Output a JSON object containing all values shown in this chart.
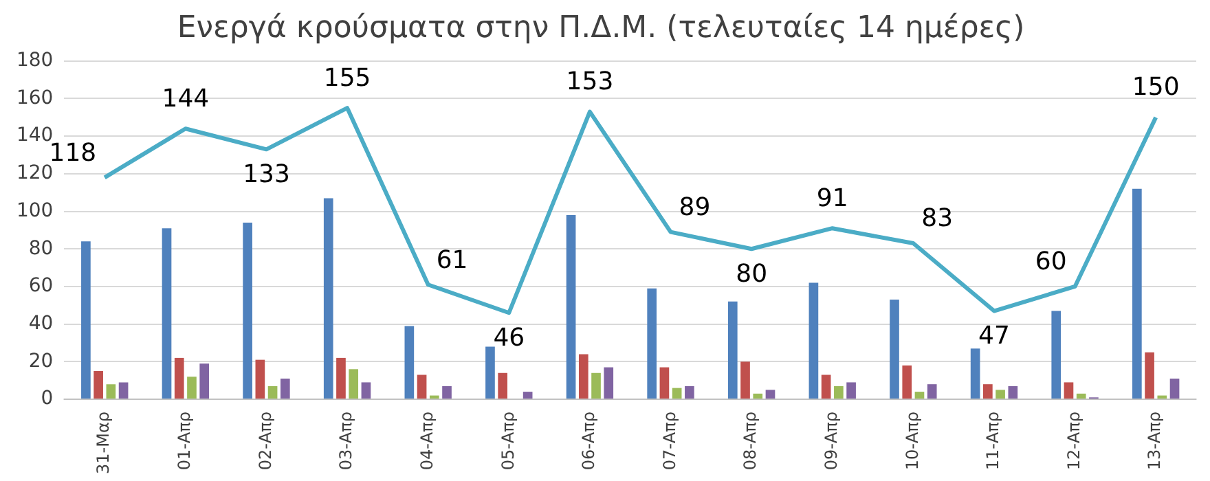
{
  "chart_data": {
    "type": "bar",
    "title": "Ενεργά κρούσματα στην Π.Δ.Μ. (τελευταίες 14 ημέρες)",
    "categories": [
      "31-Μαρ",
      "01-Απρ",
      "02-Απρ",
      "03-Απρ",
      "04-Απρ",
      "05-Απρ",
      "06-Απρ",
      "07-Απρ",
      "08-Απρ",
      "09-Απρ",
      "10-Απρ",
      "11-Απρ",
      "12-Απρ",
      "13-Απρ"
    ],
    "series": [
      {
        "color": "#4f81bd",
        "values": [
          84,
          91,
          94,
          107,
          39,
          28,
          98,
          59,
          52,
          62,
          53,
          27,
          47,
          112
        ]
      },
      {
        "color": "#c0504d",
        "values": [
          15,
          22,
          21,
          22,
          13,
          14,
          24,
          17,
          20,
          13,
          18,
          8,
          9,
          25
        ]
      },
      {
        "color": "#9bbb59",
        "values": [
          8,
          12,
          7,
          16,
          2,
          0,
          14,
          6,
          3,
          7,
          4,
          5,
          3,
          2
        ]
      },
      {
        "color": "#8064a2",
        "values": [
          9,
          19,
          11,
          9,
          7,
          4,
          17,
          7,
          5,
          9,
          8,
          7,
          1,
          11
        ]
      },
      {
        "type": "line",
        "color": "#4bacc6",
        "values": [
          118,
          144,
          133,
          155,
          61,
          46,
          153,
          89,
          80,
          91,
          83,
          47,
          60,
          150
        ],
        "value_labels": [
          "118",
          "144",
          "133",
          "155",
          "61",
          "46",
          "153",
          "89",
          "80",
          "91",
          "83",
          "47",
          "60",
          "150"
        ]
      }
    ],
    "ylim": [
      0,
      180
    ],
    "yticks": [
      0,
      20,
      40,
      60,
      80,
      100,
      120,
      140,
      160,
      180
    ],
    "grid": "y",
    "legend": false,
    "marker": "none"
  }
}
